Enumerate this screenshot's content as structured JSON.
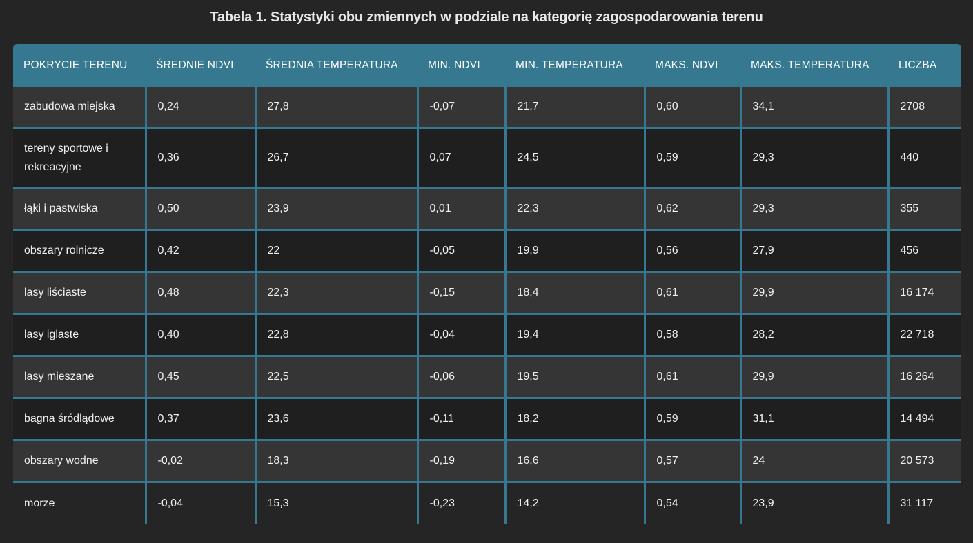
{
  "caption": "Tabela 1. Statystyki obu zmiennych w podziale na kategorię zagospodarowania terenu",
  "columns": [
    "POKRYCIE TERENU",
    "ŚREDNIE NDVI",
    "ŚREDNIA TEMPERATURA",
    "MIN. NDVI",
    "MIN. TEMPERATURA",
    "MAKS. NDVI",
    "MAKS. TEMPERATURA",
    "LICZBA"
  ],
  "rows": [
    [
      "zabudowa miejska",
      "0,24",
      "27,8",
      "-0,07",
      "21,7",
      "0,60",
      "34,1",
      "2708"
    ],
    [
      "tereny sportowe i rekreacyjne",
      "0,36",
      "26,7",
      "0,07",
      "24,5",
      "0,59",
      "29,3",
      "440"
    ],
    [
      "łąki i pastwiska",
      "0,50",
      "23,9",
      "0,01",
      "22,3",
      "0,62",
      "29,3",
      "355"
    ],
    [
      "obszary rolnicze",
      "0,42",
      "22",
      "-0,05",
      "19,9",
      "0,56",
      "27,9",
      "456"
    ],
    [
      "lasy liściaste",
      "0,48",
      "22,3",
      "-0,15",
      "18,4",
      "0,61",
      "29,9",
      "16 174"
    ],
    [
      "lasy iglaste",
      "0,40",
      "22,8",
      "-0,04",
      "19,4",
      "0,58",
      "28,2",
      "22 718"
    ],
    [
      "lasy mieszane",
      "0,45",
      "22,5",
      "-0,06",
      "19,5",
      "0,61",
      "29,9",
      "16 264"
    ],
    [
      "bagna śródlądowe",
      "0,37",
      "23,6",
      "-0,11",
      "18,2",
      "0,59",
      "31,1",
      "14 494"
    ],
    [
      "obszary wodne",
      "-0,02",
      "18,3",
      "-0,19",
      "16,6",
      "0,57",
      "24",
      "20 573"
    ],
    [
      "morze",
      "-0,04",
      "15,3",
      "-0,23",
      "14,2",
      "0,54",
      "23,9",
      "31 117"
    ]
  ],
  "colors": {
    "header_bg": "#35788f",
    "page_bg": "#252525",
    "row_light": "#353535",
    "row_dark": "#1f1f1f"
  }
}
